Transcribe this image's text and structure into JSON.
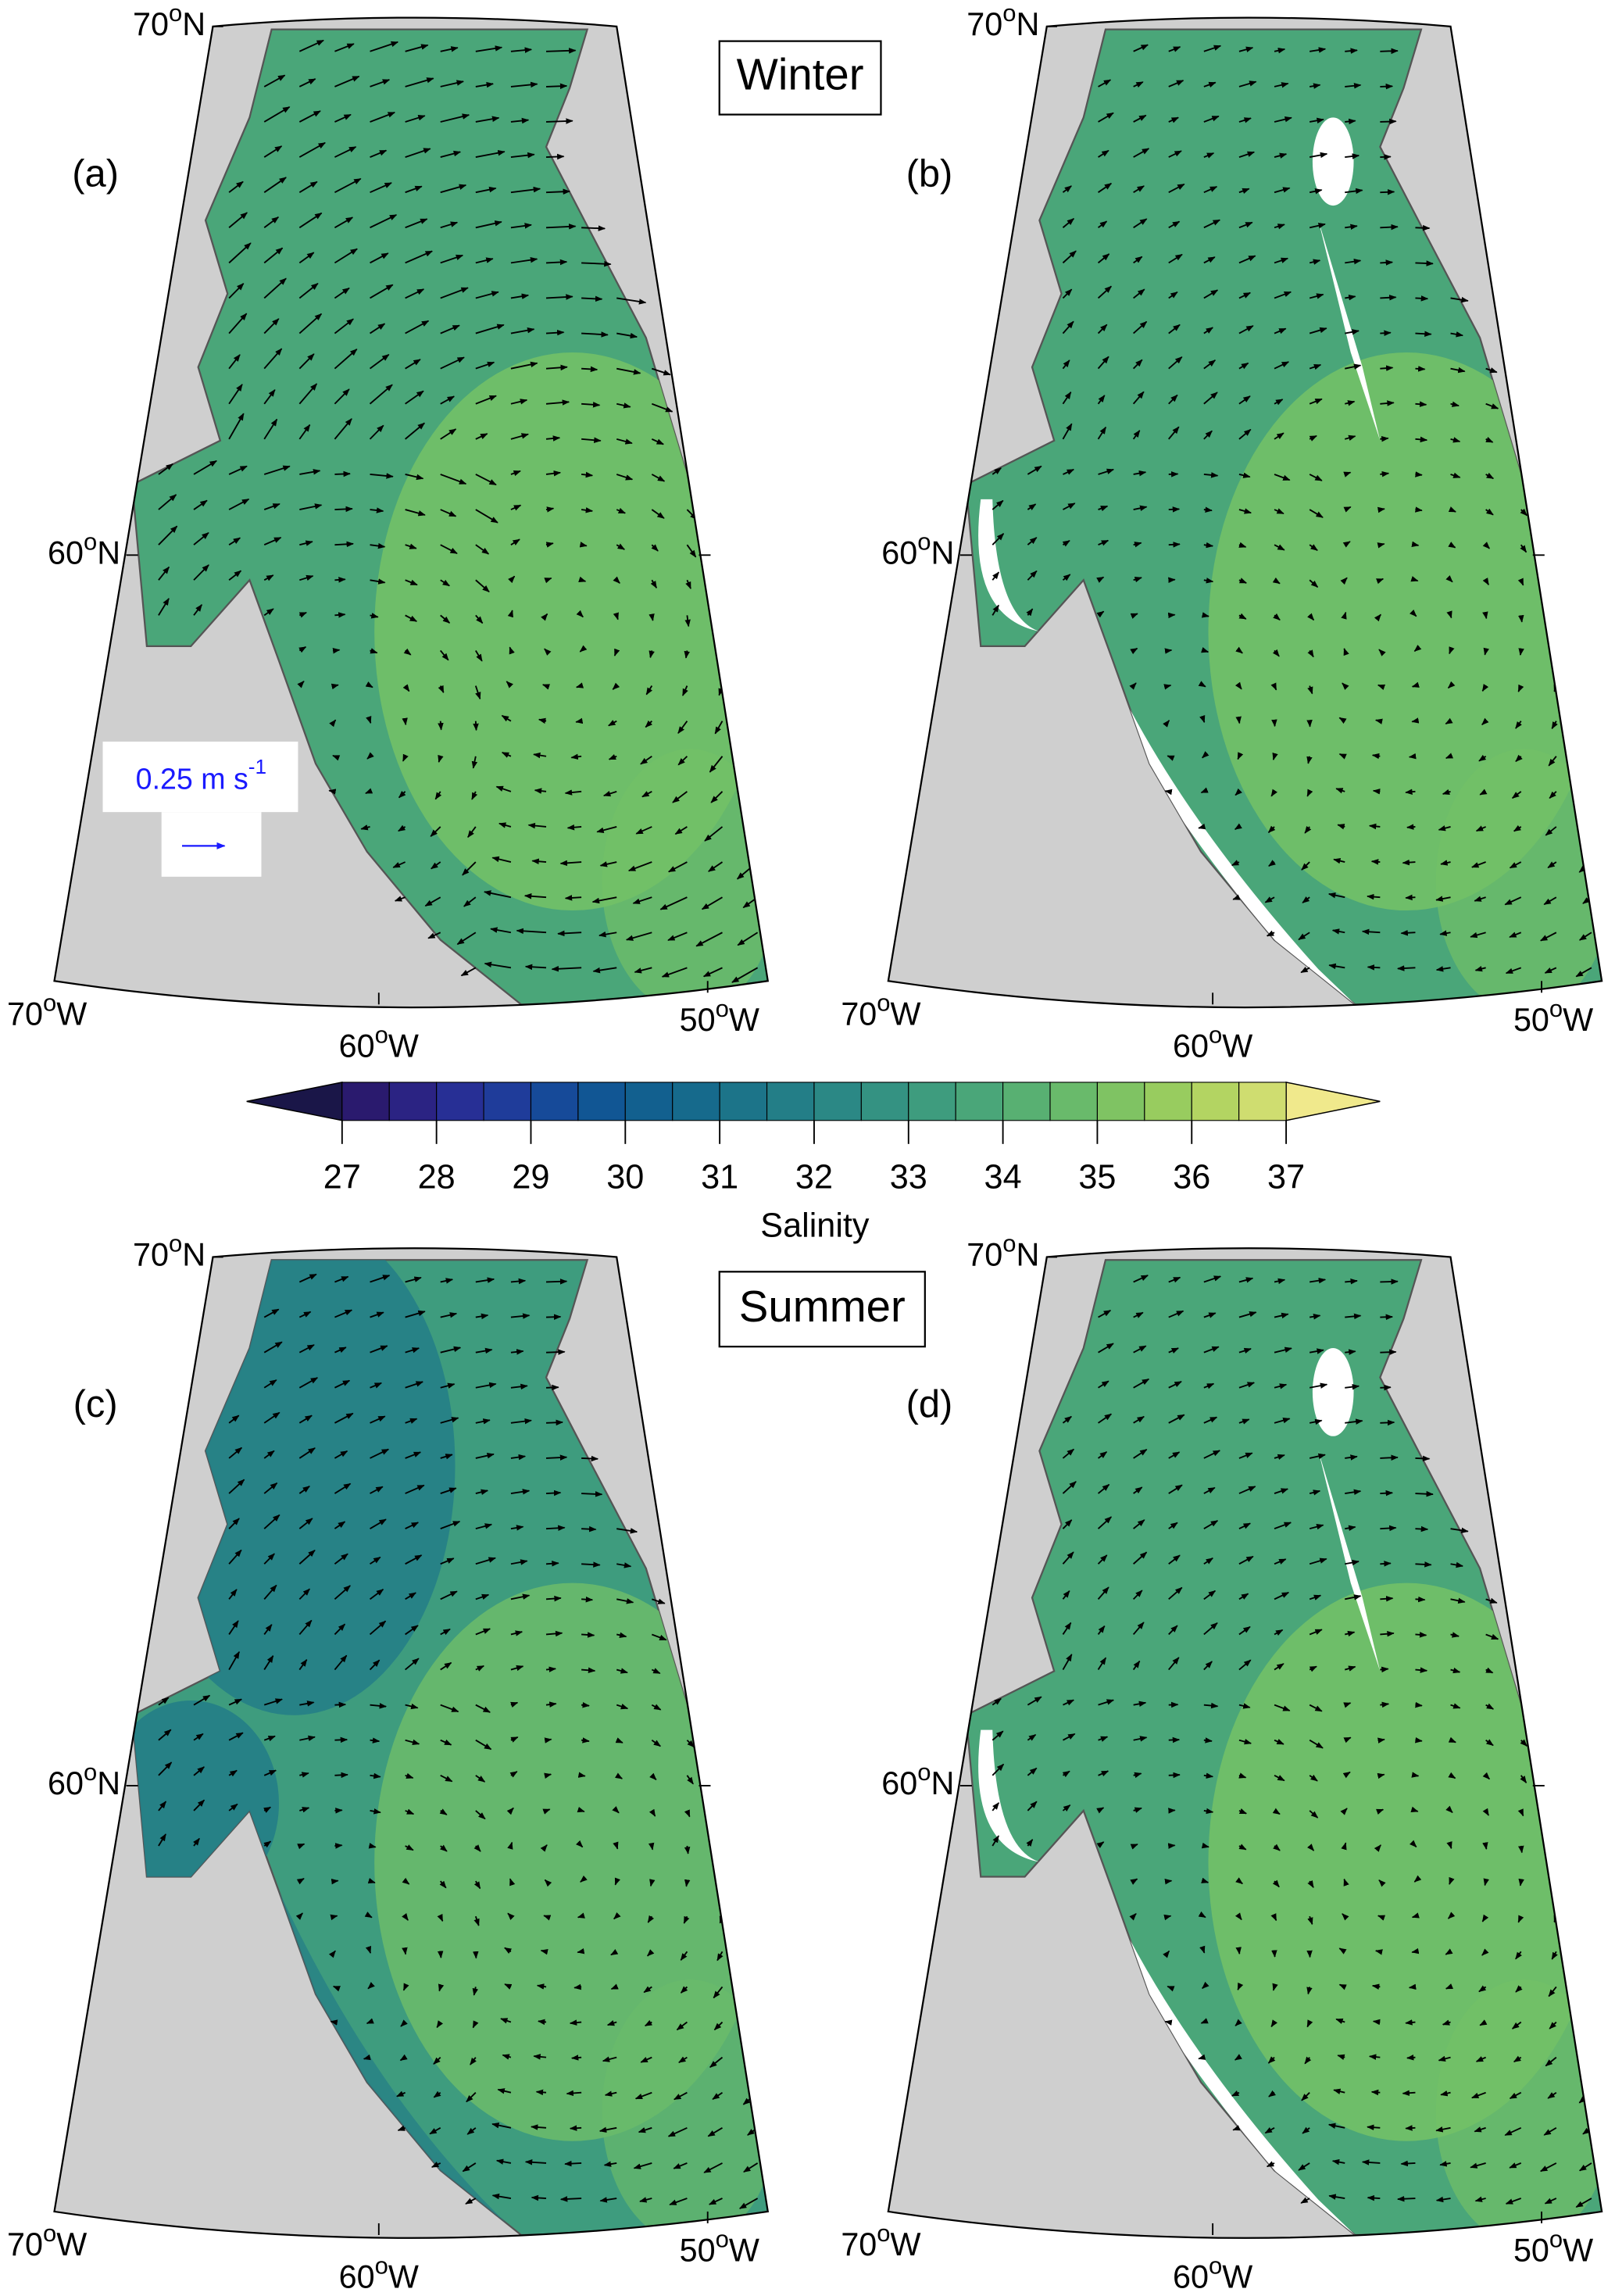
{
  "figure": {
    "seasons": [
      "Winter",
      "Summer"
    ],
    "panels": [
      {
        "label": "(a)"
      },
      {
        "label": "(b)"
      },
      {
        "label": "(c)"
      },
      {
        "label": "(d)"
      }
    ],
    "lat_labels": [
      {
        "num": "70",
        "deg": "o",
        "dir": "N"
      },
      {
        "num": "60",
        "deg": "o",
        "dir": "N"
      }
    ],
    "lon_labels": [
      {
        "num": "70",
        "deg": "o",
        "dir": "W"
      },
      {
        "num": "60",
        "deg": "o",
        "dir": "W"
      },
      {
        "num": "50",
        "deg": "o",
        "dir": "W"
      }
    ],
    "scale": {
      "text": "0.25 m s",
      "sup": "-1"
    },
    "colorbar": {
      "label": "Salinity",
      "lim": [
        27,
        37
      ],
      "ticks": [
        27,
        28,
        29,
        30,
        31,
        32,
        33,
        34,
        35,
        36,
        37
      ],
      "levels": [
        27,
        27.5,
        28,
        28.5,
        29,
        29.5,
        30,
        30.5,
        31,
        31.5,
        32,
        32.5,
        33,
        33.5,
        34,
        34.5,
        35,
        35.5,
        36,
        36.5,
        37
      ],
      "colors": [
        "#2a1a6e",
        "#2b2383",
        "#272f95",
        "#1f3c9a",
        "#164a99",
        "#115694",
        "#12608f",
        "#166a8c",
        "#1c7489",
        "#237e87",
        "#2b8885",
        "#349282",
        "#3e9c7e",
        "#4aa679",
        "#58b072",
        "#69ba6b",
        "#7fc363",
        "#98cc5f",
        "#b3d462",
        "#cfdd70"
      ],
      "under_color": "#1a1648",
      "over_color": "#f0e98c"
    }
  }
}
